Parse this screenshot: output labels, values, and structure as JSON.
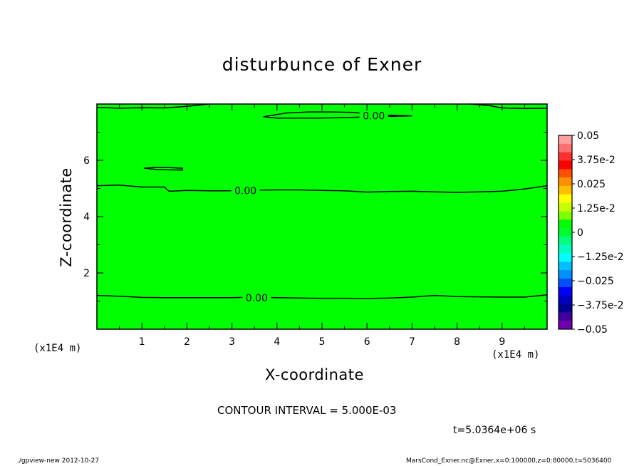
{
  "chart_data": {
    "type": "contour",
    "title": "disturbunce of Exner",
    "xlabel": "X-coordinate",
    "ylabel": "Z-coordinate",
    "x_unit_label": "(x1E4 m)",
    "x_unit_label_right": "(x1E4 m)",
    "xlim": [
      0,
      10
    ],
    "ylim": [
      0,
      8
    ],
    "x_ticks": [
      "1",
      "2",
      "3",
      "4",
      "5",
      "6",
      "7",
      "8",
      "9"
    ],
    "y_ticks": [
      "2",
      "4",
      "6"
    ],
    "contour_interval_text": "CONTOUR INTERVAL = 5.000E-03",
    "time_text": "t=5.0364e+06 s",
    "field_value": 0,
    "contours": [
      {
        "label": "0.00",
        "x": [
          0,
          0.5,
          1,
          1.5,
          2,
          2.5,
          3,
          3.5,
          4,
          4.5,
          5,
          5.5,
          6,
          6.5,
          7,
          7.5,
          8,
          8.5,
          9,
          9.5,
          10
        ],
        "z": [
          1.2,
          1.17,
          1.13,
          1.12,
          1.12,
          1.12,
          1.12,
          1.14,
          1.12,
          1.11,
          1.1,
          1.1,
          1.09,
          1.11,
          1.14,
          1.2,
          1.16,
          1.15,
          1.14,
          1.14,
          1.22
        ]
      },
      {
        "label": "0.00",
        "x": [
          0,
          0.5,
          1,
          1.5,
          1.6,
          2,
          2.5,
          3,
          3.5,
          4,
          4.5,
          5,
          5.5,
          6,
          6.5,
          7,
          7.5,
          8,
          8.5,
          9,
          9.5,
          10
        ],
        "z": [
          5.1,
          5.12,
          5.05,
          5.05,
          4.9,
          4.93,
          4.92,
          4.92,
          4.94,
          4.95,
          4.95,
          4.93,
          4.92,
          4.87,
          4.89,
          4.9,
          4.88,
          4.86,
          4.88,
          4.9,
          4.98,
          5.1
        ]
      },
      {
        "label": "",
        "x": [
          1.05,
          1.3,
          1.6,
          1.9,
          1.9,
          1.6,
          1.3,
          1.05
        ],
        "z": [
          5.72,
          5.75,
          5.74,
          5.72,
          5.65,
          5.66,
          5.68,
          5.72
        ],
        "closed": true
      },
      {
        "label": "0.00",
        "x": [
          3.7,
          4.2,
          4.7,
          5.2,
          5.7,
          6.2,
          7.0,
          6.2,
          5.5,
          5.0,
          4.5,
          4.0,
          3.7
        ],
        "z": [
          7.55,
          7.68,
          7.72,
          7.72,
          7.7,
          7.62,
          7.58,
          7.55,
          7.52,
          7.5,
          7.5,
          7.5,
          7.55
        ],
        "closed": true
      },
      {
        "label": "",
        "x": [
          0,
          0.5,
          1.0,
          1.5,
          2.0,
          2.5
        ],
        "z": [
          7.88,
          7.85,
          7.87,
          7.86,
          7.92,
          8.0
        ]
      },
      {
        "label": "",
        "x": [
          8.3,
          8.7,
          9.0,
          9.5,
          10
        ],
        "z": [
          8.0,
          7.95,
          7.86,
          7.84,
          7.85
        ]
      }
    ],
    "colorbar": {
      "labels": [
        "0.05",
        "3.75e-2",
        "0.025",
        "1.25e-2",
        "0",
        "−1.25e-2",
        "−0.025",
        "−3.75e-2",
        "−0.05"
      ],
      "colors": [
        "#ffa0a0",
        "#ff7070",
        "#ff3030",
        "#ff0000",
        "#ff5000",
        "#ff9000",
        "#ffc000",
        "#ffff00",
        "#c8ff00",
        "#80ff00",
        "#00ff00",
        "#00ff30",
        "#00ff80",
        "#00ffc0",
        "#00ffff",
        "#00c0ff",
        "#0090ff",
        "#0050ff",
        "#0000ff",
        "#0000c0",
        "#000090",
        "#4000a0",
        "#7000b0"
      ]
    },
    "background_color": "#00ff00"
  },
  "footer": {
    "left": "./gpview-new   2012-10-27",
    "right": "MarsCond_Exner.nc@Exner,x=0:100000,z=0:80000,t=5036400"
  }
}
